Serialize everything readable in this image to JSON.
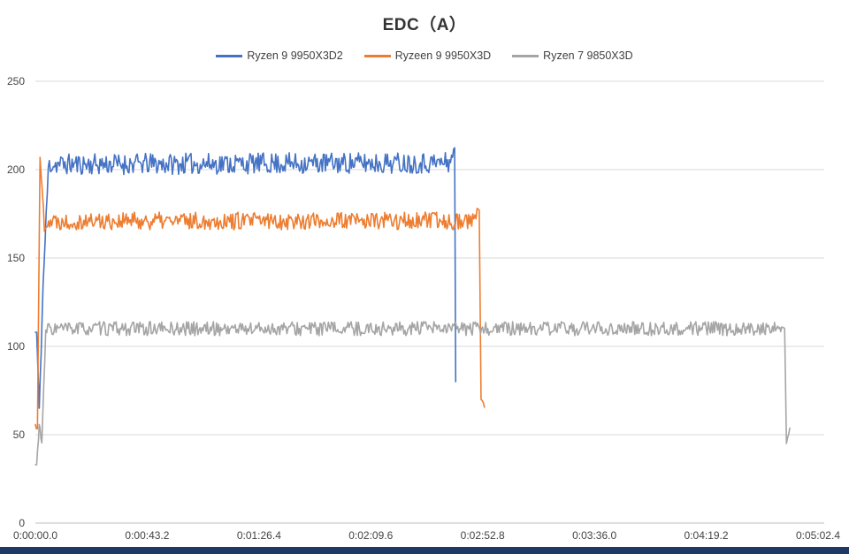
{
  "chart_data": {
    "type": "line",
    "title": "EDC（A）",
    "xlabel": "",
    "ylabel": "",
    "grid": true,
    "legend_position": "top-center",
    "x_ticks": [
      "0:00:00.0",
      "0:00:43.2",
      "0:01:26.4",
      "0:02:09.6",
      "0:02:52.8",
      "0:03:36.0",
      "0:04:19.2",
      "0:05:02.4"
    ],
    "x_tick_seconds": [
      0,
      43.2,
      86.4,
      129.6,
      172.8,
      216.0,
      259.2,
      302.4
    ],
    "x_max_seconds": 304.8,
    "y_ticks": [
      0,
      50,
      100,
      150,
      200,
      250
    ],
    "ylim": [
      0,
      250
    ],
    "sample_step_seconds": 0.4,
    "series": [
      {
        "name": "Ryzen 9 9950X3D2",
        "color": "#4472C4",
        "seed": 11,
        "plateau_value": 204,
        "segments": [
          [
            0,
            0.5,
            108,
            108,
            0
          ],
          [
            0.5,
            1.5,
            108,
            65,
            0
          ],
          [
            1.5,
            3,
            65,
            135,
            4
          ],
          [
            3,
            5,
            135,
            200,
            4
          ],
          [
            5,
            160,
            203,
            204,
            6
          ],
          [
            160,
            162,
            205,
            211,
            3
          ],
          [
            162,
            162.4,
            211,
            80,
            0
          ]
        ]
      },
      {
        "name": "Ryzeen 9 9950X3D",
        "color": "#ED7D31",
        "seed": 22,
        "plateau_value": 171,
        "segments": [
          [
            0,
            0.8,
            55,
            55,
            3
          ],
          [
            0.8,
            1.8,
            55,
            207,
            0
          ],
          [
            1.8,
            3.5,
            207,
            168,
            3
          ],
          [
            3.5,
            169,
            171,
            171,
            5
          ],
          [
            169,
            171.5,
            172,
            177,
            3
          ],
          [
            171.5,
            172.2,
            177,
            70,
            0
          ],
          [
            172.2,
            173.5,
            70,
            66,
            1.5
          ]
        ]
      },
      {
        "name": "Ryzen 7 9850X3D",
        "color": "#A5A5A5",
        "seed": 33,
        "plateau_value": 110,
        "segments": [
          [
            0,
            0.5,
            33,
            33,
            0
          ],
          [
            0.5,
            1.5,
            33,
            56,
            2
          ],
          [
            1.5,
            2.5,
            56,
            45,
            2
          ],
          [
            2.5,
            4,
            45,
            108,
            2
          ],
          [
            4,
            288,
            110,
            110,
            4
          ],
          [
            288,
            289.5,
            110,
            112,
            2
          ],
          [
            289.5,
            290.2,
            112,
            45,
            0
          ],
          [
            290.2,
            291.5,
            45,
            53,
            1.5
          ]
        ]
      }
    ],
    "colors": {
      "gridline": "#D9D9D9",
      "baseline": "#BFBFBF",
      "footer_bar": "#1F3864"
    }
  }
}
